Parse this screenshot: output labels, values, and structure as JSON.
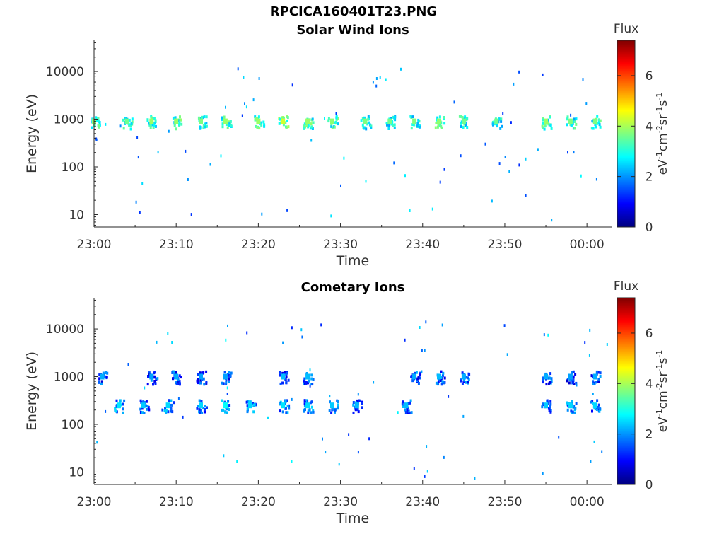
{
  "figure": {
    "title": "RPCICA160401T23.PNG"
  },
  "colorbar": {
    "label_title": "Flux",
    "unit_parts": [
      "eV",
      "-1",
      "cm",
      "-2",
      "sr",
      "-1",
      "s",
      "-1"
    ],
    "ticks": [
      0,
      2,
      4,
      6
    ],
    "range": [
      0,
      7.4
    ],
    "colormap": "jet",
    "colors": [
      "#00007f",
      "#0000ff",
      "#007fff",
      "#00ffff",
      "#7fff7f",
      "#ffff00",
      "#ff7f00",
      "#ff0000",
      "#7f0000"
    ]
  },
  "chart_data": [
    {
      "type": "heatmap",
      "title": "Solar Wind Ions",
      "xlabel": "Time",
      "ylabel": "Energy (eV)",
      "xscale": "time",
      "xlim": [
        "23:00",
        "00:03"
      ],
      "xticks": [
        "23:00",
        "23:10",
        "23:20",
        "23:30",
        "23:40",
        "23:50",
        "00:00"
      ],
      "yscale": "log",
      "ylim": [
        5.5,
        45000
      ],
      "yticks": [
        10,
        100,
        1000,
        10000
      ],
      "ytick_labels": [
        "10",
        "100",
        "1000",
        "10000"
      ],
      "grid": false,
      "clusters": [
        {
          "time": "23:00",
          "energy": 900,
          "flux": 3.8
        },
        {
          "time": "23:04",
          "energy": 900,
          "flux": 3.6
        },
        {
          "time": "23:07",
          "energy": 900,
          "flux": 3.9
        },
        {
          "time": "23:10",
          "energy": 900,
          "flux": 3.9
        },
        {
          "time": "23:13",
          "energy": 900,
          "flux": 3.7
        },
        {
          "time": "23:16",
          "energy": 900,
          "flux": 3.9
        },
        {
          "time": "23:20",
          "energy": 900,
          "flux": 3.9
        },
        {
          "time": "23:23",
          "energy": 900,
          "flux": 4.3
        },
        {
          "time": "23:26",
          "energy": 900,
          "flux": 3.9
        },
        {
          "time": "23:29",
          "energy": 900,
          "flux": 3.8
        },
        {
          "time": "23:33",
          "energy": 900,
          "flux": 3.7
        },
        {
          "time": "23:36",
          "energy": 900,
          "flux": 3.6
        },
        {
          "time": "23:39",
          "energy": 900,
          "flux": 3.7
        },
        {
          "time": "23:42",
          "energy": 900,
          "flux": 3.8
        },
        {
          "time": "23:45",
          "energy": 900,
          "flux": 3.6
        },
        {
          "time": "23:49",
          "energy": 900,
          "flux": 3.6
        },
        {
          "time": "23:55",
          "energy": 900,
          "flux": 3.9
        },
        {
          "time": "23:58",
          "energy": 900,
          "flux": 3.7
        },
        {
          "time": "00:01",
          "energy": 900,
          "flux": 3.7
        }
      ]
    },
    {
      "type": "heatmap",
      "title": "Cometary Ions",
      "xlabel": "Time",
      "ylabel": "Energy (eV)",
      "xscale": "time",
      "xlim": [
        "23:00",
        "00:03"
      ],
      "xticks": [
        "23:00",
        "23:10",
        "23:20",
        "23:30",
        "23:40",
        "23:50",
        "00:00"
      ],
      "yscale": "log",
      "ylim": [
        5.5,
        45000
      ],
      "yticks": [
        10,
        100,
        1000,
        10000
      ],
      "ytick_labels": [
        "10",
        "100",
        "1000",
        "10000"
      ],
      "grid": false,
      "clusters": [
        {
          "time": "23:03",
          "energy": 250,
          "flux": 2.6
        },
        {
          "time": "23:06",
          "energy": 250,
          "flux": 2.4
        },
        {
          "time": "23:09",
          "energy": 250,
          "flux": 2.5
        },
        {
          "time": "23:13",
          "energy": 250,
          "flux": 2.5
        },
        {
          "time": "23:16",
          "energy": 250,
          "flux": 2.8
        },
        {
          "time": "23:19",
          "energy": 250,
          "flux": 2.5
        },
        {
          "time": "23:23",
          "energy": 250,
          "flux": 2.6
        },
        {
          "time": "23:26",
          "energy": 250,
          "flux": 2.5
        },
        {
          "time": "23:29",
          "energy": 250,
          "flux": 2.4
        },
        {
          "time": "23:32",
          "energy": 250,
          "flux": 2.3
        },
        {
          "time": "23:38",
          "energy": 250,
          "flux": 2.3
        },
        {
          "time": "23:55",
          "energy": 250,
          "flux": 2.4
        },
        {
          "time": "23:58",
          "energy": 250,
          "flux": 2.5
        },
        {
          "time": "00:01",
          "energy": 250,
          "flux": 2.5
        },
        {
          "time": "23:01",
          "energy": 1000,
          "flux": 2.2
        },
        {
          "time": "23:07",
          "energy": 1000,
          "flux": 2.1
        },
        {
          "time": "23:10",
          "energy": 1000,
          "flux": 2.2
        },
        {
          "time": "23:13",
          "energy": 1000,
          "flux": 2.1
        },
        {
          "time": "23:16",
          "energy": 1000,
          "flux": 2.1
        },
        {
          "time": "23:23",
          "energy": 1000,
          "flux": 2.3
        },
        {
          "time": "23:26",
          "energy": 1000,
          "flux": 2.3
        },
        {
          "time": "23:39",
          "energy": 1000,
          "flux": 2.2
        },
        {
          "time": "23:42",
          "energy": 1000,
          "flux": 2.3
        },
        {
          "time": "23:45",
          "energy": 1000,
          "flux": 2.2
        },
        {
          "time": "23:55",
          "energy": 1000,
          "flux": 2.2
        },
        {
          "time": "23:58",
          "energy": 1000,
          "flux": 2.1
        },
        {
          "time": "00:01",
          "energy": 1000,
          "flux": 2.2
        }
      ]
    }
  ]
}
